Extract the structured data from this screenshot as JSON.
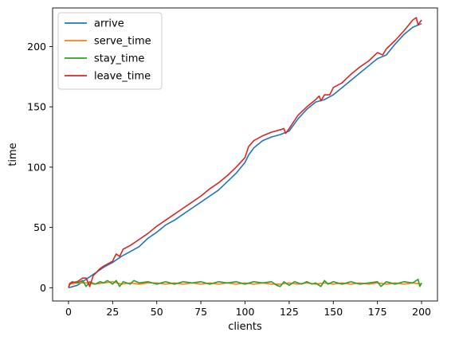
{
  "chart_data": {
    "type": "line",
    "xlabel": "clients",
    "ylabel": "time",
    "xlim": [
      -9,
      209
    ],
    "ylim": [
      -11,
      232
    ],
    "x_ticks": [
      0,
      25,
      50,
      75,
      100,
      125,
      150,
      175,
      200
    ],
    "y_ticks": [
      0,
      50,
      100,
      150,
      200
    ],
    "legend_location": "top-left",
    "grid": false,
    "series": [
      {
        "name": "arrive",
        "color": "#1f77b4",
        "points": [
          [
            0,
            0
          ],
          [
            5,
            2
          ],
          [
            10,
            7
          ],
          [
            15,
            12
          ],
          [
            20,
            17
          ],
          [
            25,
            21
          ],
          [
            30,
            26
          ],
          [
            35,
            30
          ],
          [
            40,
            34
          ],
          [
            45,
            41
          ],
          [
            50,
            46
          ],
          [
            55,
            52
          ],
          [
            60,
            56
          ],
          [
            65,
            61
          ],
          [
            70,
            66
          ],
          [
            75,
            71
          ],
          [
            80,
            76
          ],
          [
            85,
            81
          ],
          [
            90,
            88
          ],
          [
            95,
            95
          ],
          [
            100,
            104
          ],
          [
            102,
            110
          ],
          [
            105,
            116
          ],
          [
            110,
            122
          ],
          [
            115,
            125
          ],
          [
            120,
            127
          ],
          [
            125,
            130
          ],
          [
            130,
            140
          ],
          [
            135,
            148
          ],
          [
            140,
            154
          ],
          [
            145,
            156
          ],
          [
            150,
            160
          ],
          [
            155,
            166
          ],
          [
            160,
            172
          ],
          [
            165,
            178
          ],
          [
            170,
            184
          ],
          [
            175,
            190
          ],
          [
            180,
            193
          ],
          [
            185,
            202
          ],
          [
            190,
            210
          ],
          [
            195,
            216
          ],
          [
            200,
            219
          ]
        ]
      },
      {
        "name": "serve_time",
        "color": "#ff7f0e",
        "points": [
          [
            0,
            3
          ],
          [
            5,
            4
          ],
          [
            10,
            4
          ],
          [
            15,
            3
          ],
          [
            20,
            4
          ],
          [
            25,
            5
          ],
          [
            30,
            3
          ],
          [
            35,
            4
          ],
          [
            40,
            3
          ],
          [
            45,
            4
          ],
          [
            50,
            4
          ],
          [
            55,
            3
          ],
          [
            60,
            4
          ],
          [
            65,
            3
          ],
          [
            70,
            4
          ],
          [
            75,
            3
          ],
          [
            80,
            4
          ],
          [
            85,
            3
          ],
          [
            90,
            4
          ],
          [
            95,
            3
          ],
          [
            100,
            4
          ],
          [
            105,
            3
          ],
          [
            110,
            4
          ],
          [
            115,
            3
          ],
          [
            120,
            3
          ],
          [
            125,
            4
          ],
          [
            130,
            3
          ],
          [
            135,
            4
          ],
          [
            140,
            3
          ],
          [
            145,
            4
          ],
          [
            150,
            3
          ],
          [
            155,
            4
          ],
          [
            160,
            3
          ],
          [
            165,
            4
          ],
          [
            170,
            3
          ],
          [
            175,
            4
          ],
          [
            180,
            3
          ],
          [
            185,
            4
          ],
          [
            190,
            3
          ],
          [
            195,
            4
          ],
          [
            200,
            3
          ]
        ]
      },
      {
        "name": "stay_time",
        "color": "#2ca02c",
        "points": [
          [
            0,
            1
          ],
          [
            2,
            5
          ],
          [
            5,
            4
          ],
          [
            8,
            6
          ],
          [
            10,
            1
          ],
          [
            12,
            5
          ],
          [
            15,
            3
          ],
          [
            18,
            5
          ],
          [
            20,
            4
          ],
          [
            22,
            6
          ],
          [
            25,
            3
          ],
          [
            27,
            6
          ],
          [
            29,
            1
          ],
          [
            31,
            5
          ],
          [
            35,
            3
          ],
          [
            37,
            6
          ],
          [
            40,
            4
          ],
          [
            45,
            5
          ],
          [
            50,
            3
          ],
          [
            55,
            5
          ],
          [
            60,
            3
          ],
          [
            65,
            5
          ],
          [
            70,
            4
          ],
          [
            75,
            5
          ],
          [
            80,
            3
          ],
          [
            85,
            5
          ],
          [
            90,
            4
          ],
          [
            95,
            5
          ],
          [
            100,
            3
          ],
          [
            105,
            5
          ],
          [
            110,
            4
          ],
          [
            115,
            5
          ],
          [
            118,
            2
          ],
          [
            120,
            1
          ],
          [
            122,
            5
          ],
          [
            125,
            2
          ],
          [
            128,
            5
          ],
          [
            132,
            3
          ],
          [
            135,
            5
          ],
          [
            138,
            3
          ],
          [
            140,
            4
          ],
          [
            143,
            1
          ],
          [
            145,
            6
          ],
          [
            147,
            3
          ],
          [
            150,
            5
          ],
          [
            155,
            3
          ],
          [
            160,
            5
          ],
          [
            165,
            3
          ],
          [
            170,
            4
          ],
          [
            175,
            5
          ],
          [
            177,
            1
          ],
          [
            180,
            5
          ],
          [
            185,
            3
          ],
          [
            190,
            5
          ],
          [
            195,
            4
          ],
          [
            198,
            7
          ],
          [
            199,
            1
          ],
          [
            200,
            4
          ]
        ]
      },
      {
        "name": "leave_time",
        "color": "#d62728",
        "points": [
          [
            0,
            0
          ],
          [
            1,
            4
          ],
          [
            5,
            5
          ],
          [
            8,
            8
          ],
          [
            10,
            8
          ],
          [
            12,
            1
          ],
          [
            14,
            10
          ],
          [
            18,
            16
          ],
          [
            20,
            18
          ],
          [
            25,
            22
          ],
          [
            27,
            28
          ],
          [
            29,
            26
          ],
          [
            31,
            32
          ],
          [
            35,
            35
          ],
          [
            40,
            40
          ],
          [
            45,
            45
          ],
          [
            50,
            51
          ],
          [
            55,
            56
          ],
          [
            60,
            61
          ],
          [
            65,
            66
          ],
          [
            70,
            71
          ],
          [
            75,
            76
          ],
          [
            80,
            82
          ],
          [
            85,
            87
          ],
          [
            90,
            93
          ],
          [
            95,
            100
          ],
          [
            100,
            108
          ],
          [
            102,
            117
          ],
          [
            105,
            122
          ],
          [
            110,
            126
          ],
          [
            115,
            129
          ],
          [
            120,
            131
          ],
          [
            122,
            132
          ],
          [
            123,
            128
          ],
          [
            125,
            132
          ],
          [
            130,
            143
          ],
          [
            135,
            150
          ],
          [
            140,
            156
          ],
          [
            142,
            159
          ],
          [
            143,
            155
          ],
          [
            145,
            160
          ],
          [
            148,
            160
          ],
          [
            150,
            166
          ],
          [
            155,
            170
          ],
          [
            160,
            177
          ],
          [
            165,
            183
          ],
          [
            170,
            188
          ],
          [
            175,
            195
          ],
          [
            178,
            193
          ],
          [
            180,
            198
          ],
          [
            185,
            205
          ],
          [
            190,
            213
          ],
          [
            195,
            222
          ],
          [
            197,
            224
          ],
          [
            198,
            218
          ],
          [
            200,
            222
          ]
        ]
      }
    ]
  }
}
